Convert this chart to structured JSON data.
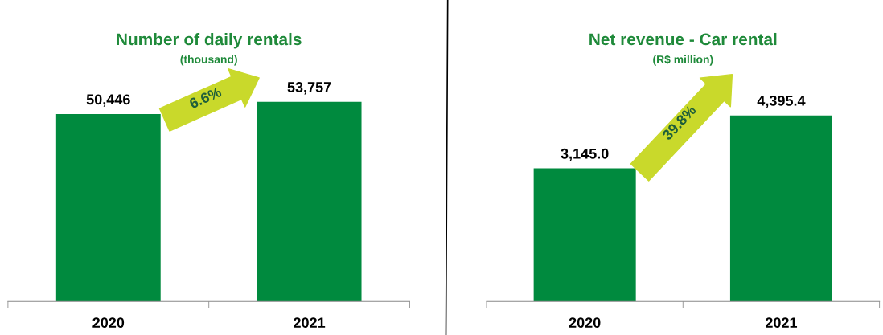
{
  "chart_data": [
    {
      "type": "bar",
      "title": "Number of daily rentals",
      "subtitle": "(thousand)",
      "categories": [
        "2020",
        "2021"
      ],
      "values": [
        50446,
        53757
      ],
      "value_labels": [
        "50,446",
        "53,757"
      ],
      "color": "#008a3e",
      "annotations": [
        "6.6%"
      ],
      "grid": false,
      "legend": false
    },
    {
      "type": "bar",
      "title": "Net revenue - Car rental",
      "subtitle": "(R$ million)",
      "categories": [
        "2020",
        "2021"
      ],
      "values": [
        3145.0,
        4395.4
      ],
      "value_labels": [
        "3,145.0",
        "4,395.4"
      ],
      "color": "#008a3e",
      "annotations": [
        "39.8%"
      ],
      "grid": false,
      "legend": false
    }
  ]
}
